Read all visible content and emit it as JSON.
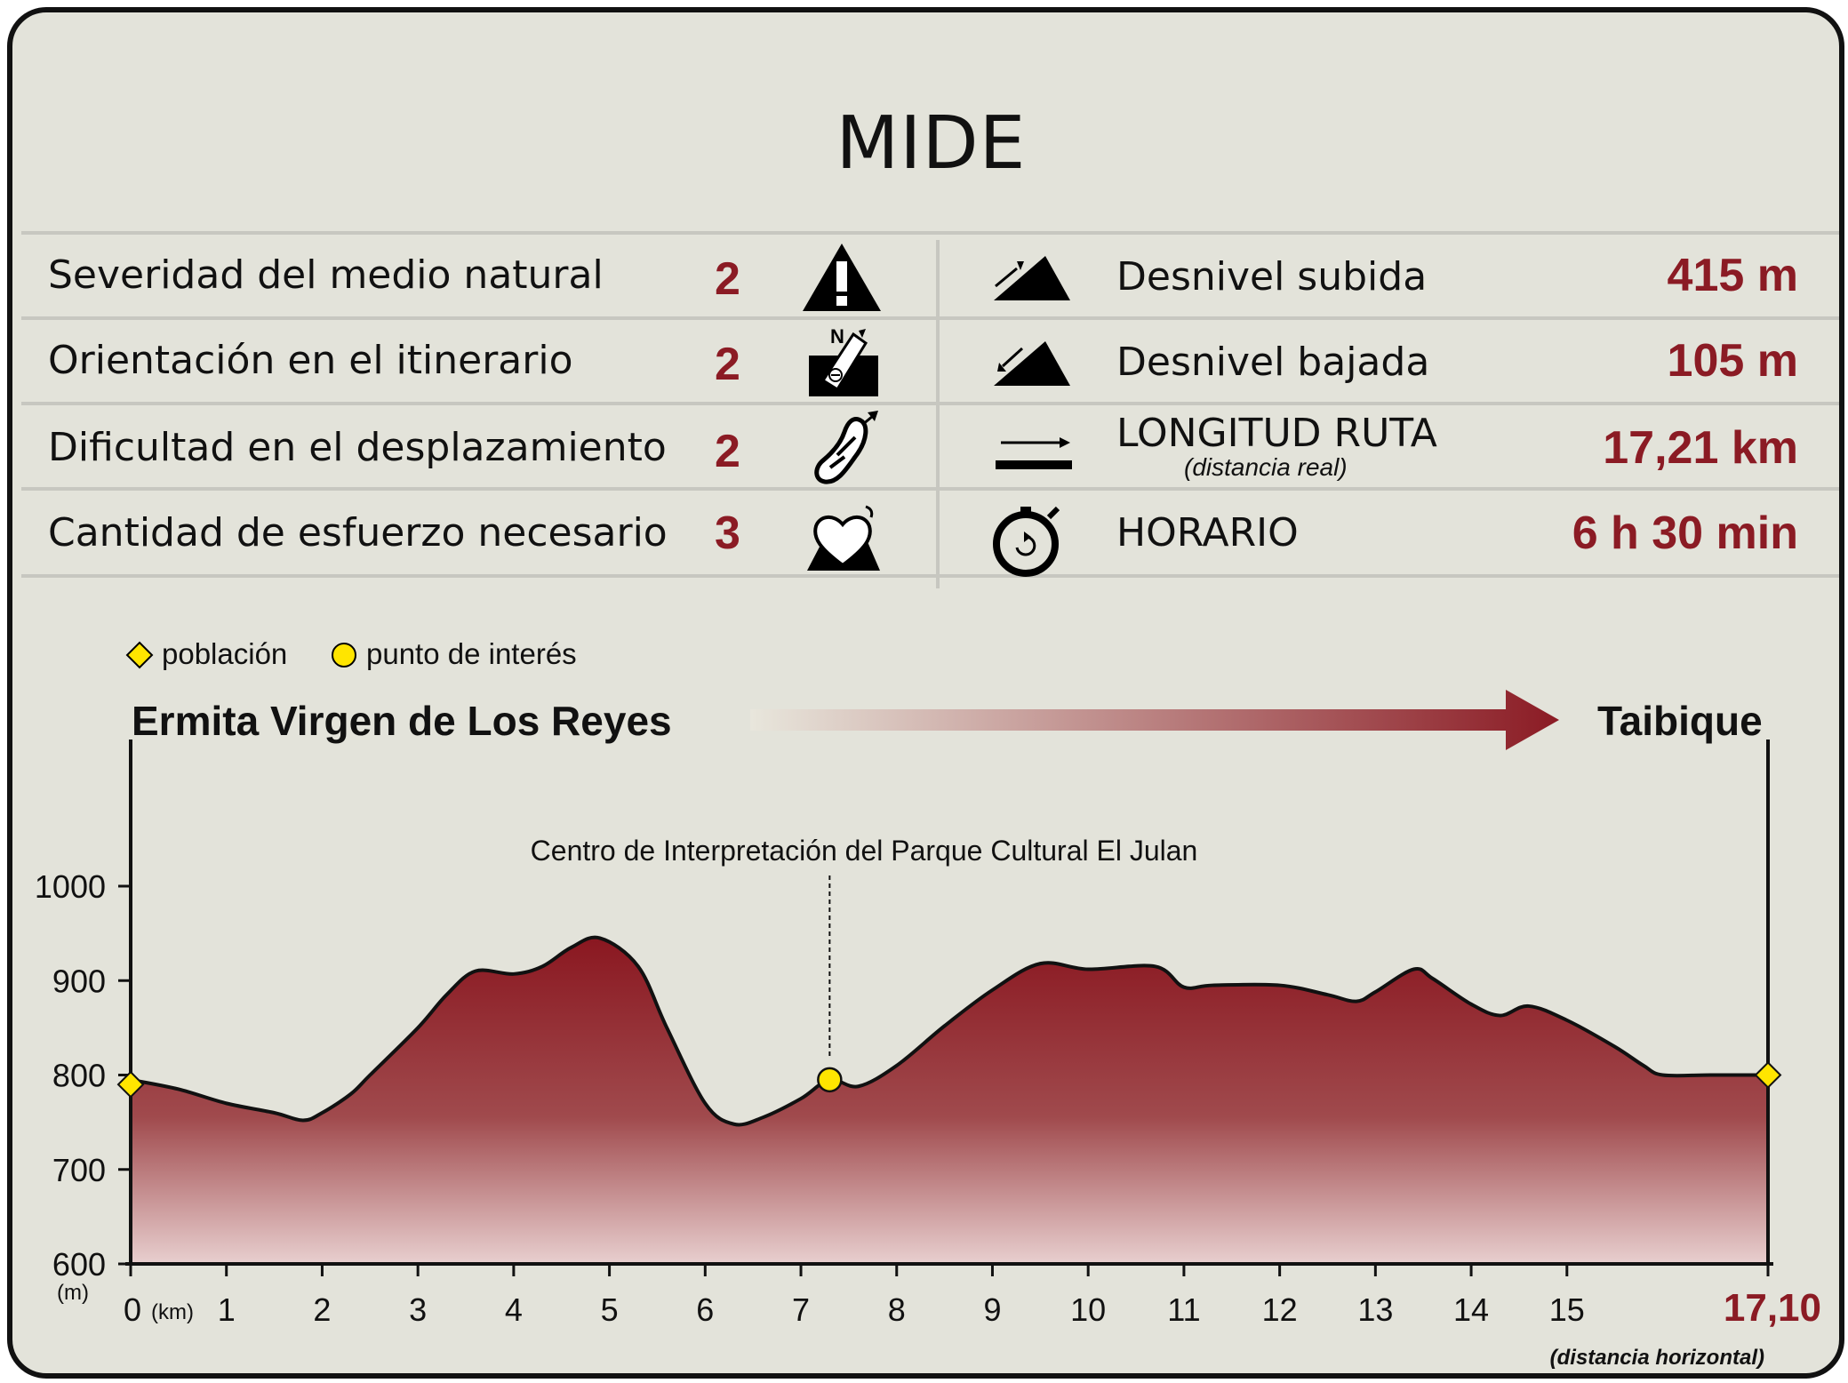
{
  "title": "MIDE",
  "mide_rows": [
    {
      "label": "Severidad del medio natural",
      "value": "2",
      "icon": "warning-triangle-icon"
    },
    {
      "label": "Orientación en el itinerario",
      "value": "2",
      "icon": "compass-orientation-icon"
    },
    {
      "label": "Dificultad en el desplazamiento",
      "value": "2",
      "icon": "footprint-icon"
    },
    {
      "label": "Cantidad de esfuerzo necesario",
      "value": "3",
      "icon": "heart-mountain-icon"
    }
  ],
  "stats": [
    {
      "label": "Desnivel subida",
      "value": "415 m",
      "icon": "slope-up-icon"
    },
    {
      "label": "Desnivel bajada",
      "value": "105 m",
      "icon": "slope-down-icon"
    },
    {
      "label": "LONGITUD RUTA",
      "sublabel": "(distancia real)",
      "value": "17,21 km",
      "icon": "distance-arrow-icon"
    },
    {
      "label": "HORARIO",
      "value": "6 h 30 min",
      "icon": "stopwatch-icon"
    }
  ],
  "legend": {
    "poblacion": "población",
    "interes": "punto de interés"
  },
  "start_name": "Ermita Virgen de Los Reyes",
  "end_name": "Taibique",
  "colors": {
    "accent": "#8b1b24",
    "marker": "#ffe500"
  },
  "chart_data": {
    "type": "area",
    "x": [
      0,
      0.5,
      1,
      1.5,
      1.8,
      2,
      2.3,
      2.5,
      3,
      3.3,
      3.6,
      4,
      4.3,
      4.6,
      4.9,
      5.3,
      5.6,
      6,
      6.3,
      6.6,
      7,
      7.3,
      7.6,
      8,
      8.5,
      9,
      9.5,
      10,
      10.7,
      11,
      11.3,
      12,
      12.5,
      12.8,
      13,
      13.4,
      13.6,
      14,
      14.3,
      14.6,
      15,
      15.5,
      15.8,
      16,
      16.5,
      17.1
    ],
    "y": [
      795,
      785,
      770,
      760,
      752,
      760,
      780,
      800,
      850,
      885,
      910,
      907,
      915,
      935,
      945,
      915,
      850,
      770,
      748,
      755,
      775,
      795,
      788,
      810,
      852,
      890,
      918,
      912,
      915,
      893,
      895,
      895,
      885,
      878,
      888,
      912,
      902,
      875,
      863,
      873,
      858,
      830,
      810,
      800,
      800,
      800
    ],
    "xlabel": "(km)",
    "ylabel": "(m)",
    "xlim": [
      0,
      17.1
    ],
    "ylim": [
      600,
      1000
    ],
    "x_ticks": [
      "0",
      "1",
      "2",
      "3",
      "4",
      "5",
      "6",
      "7",
      "8",
      "9",
      "10",
      "11",
      "12",
      "13",
      "14",
      "15"
    ],
    "x_end_label": "17,10",
    "x_end_sublabel": "(distancia horizontal)",
    "y_ticks": [
      600,
      700,
      800,
      900,
      1000
    ],
    "annotation": {
      "x": 7.3,
      "y": 795,
      "text": "Centro de Interpretación del Parque Cultural El Julan"
    },
    "markers": [
      {
        "x": 0,
        "y": 790,
        "type": "poblacion"
      },
      {
        "x": 7.3,
        "y": 795,
        "type": "interes"
      },
      {
        "x": 17.1,
        "y": 800,
        "type": "poblacion"
      }
    ],
    "legend": "top-left",
    "grid": false
  }
}
